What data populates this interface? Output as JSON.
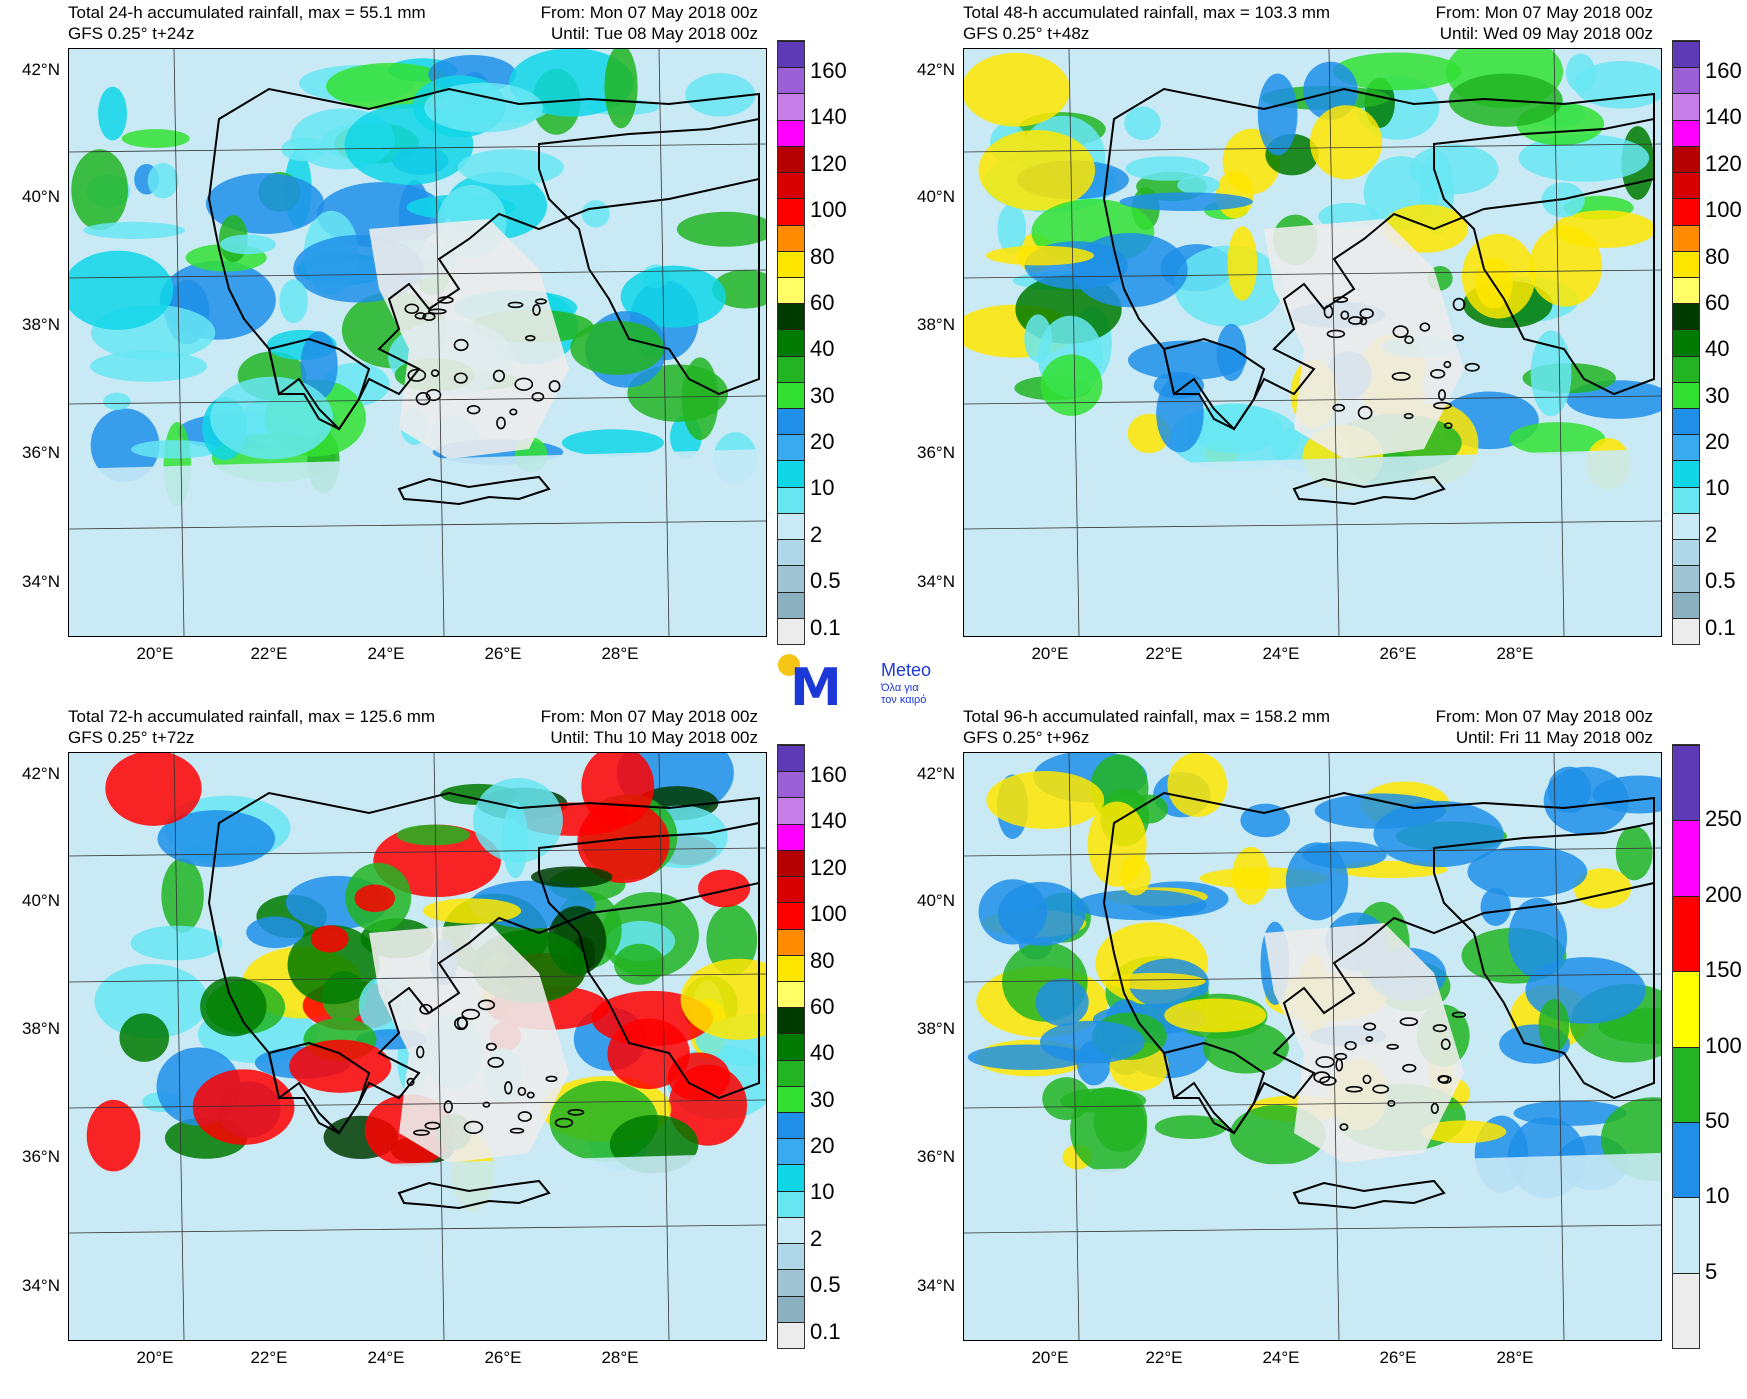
{
  "panels": [
    {
      "title": "Total 24-h accumulated rainfall, max = 55.1 mm",
      "subtitle": "GFS 0.25° t+24z",
      "from": "From: Mon 07 May 2018 00z",
      "until": "Until: Tue 08 May 2018 00z",
      "colorbar_labels": [
        "160",
        "140",
        "120",
        "100",
        "80",
        "60",
        "40",
        "30",
        "20",
        "10",
        "2",
        "0.5",
        "0.1"
      ],
      "colorbar_colors": [
        "#5e3bb6",
        "#9b5fd6",
        "#c77de8",
        "#ff00ff",
        "#b50000",
        "#d90000",
        "#ff0000",
        "#ff8c00",
        "#ffe600",
        "#ffff66",
        "#003c00",
        "#007a00",
        "#22b422",
        "#32e032",
        "#1f8fe8",
        "#3aaaf0",
        "#11d6e8",
        "#67e6f2",
        "#c9e9f5",
        "#b0d7e8",
        "#9fc4d4",
        "#8cb0bf",
        "#ececec"
      ],
      "accent": "#22b422"
    },
    {
      "title": "Total 48-h accumulated rainfall, max = 103.3 mm",
      "subtitle": "GFS 0.25° t+48z",
      "from": "From: Mon 07 May 2018 00z",
      "until": "Until: Wed 09 May 2018 00z",
      "colorbar_labels": [
        "160",
        "140",
        "120",
        "100",
        "80",
        "60",
        "40",
        "30",
        "20",
        "10",
        "2",
        "0.5",
        "0.1"
      ],
      "colorbar_colors": [
        "#5e3bb6",
        "#9b5fd6",
        "#c77de8",
        "#ff00ff",
        "#b50000",
        "#d90000",
        "#ff0000",
        "#ff8c00",
        "#ffe600",
        "#ffff66",
        "#003c00",
        "#007a00",
        "#22b422",
        "#32e032",
        "#1f8fe8",
        "#3aaaf0",
        "#11d6e8",
        "#67e6f2",
        "#c9e9f5",
        "#b0d7e8",
        "#9fc4d4",
        "#8cb0bf",
        "#ececec"
      ],
      "accent": "#22b422"
    },
    {
      "title": "Total 72-h accumulated rainfall, max = 125.6 mm",
      "subtitle": "GFS 0.25° t+72z",
      "from": "From: Mon 07 May 2018 00z",
      "until": "Until: Thu 10 May 2018 00z",
      "colorbar_labels": [
        "160",
        "140",
        "120",
        "100",
        "80",
        "60",
        "40",
        "30",
        "20",
        "10",
        "2",
        "0.5",
        "0.1"
      ],
      "colorbar_colors": [
        "#5e3bb6",
        "#9b5fd6",
        "#c77de8",
        "#ff00ff",
        "#b50000",
        "#d90000",
        "#ff0000",
        "#ff8c00",
        "#ffe600",
        "#ffff66",
        "#003c00",
        "#007a00",
        "#22b422",
        "#32e032",
        "#1f8fe8",
        "#3aaaf0",
        "#11d6e8",
        "#67e6f2",
        "#c9e9f5",
        "#b0d7e8",
        "#9fc4d4",
        "#8cb0bf",
        "#ececec"
      ],
      "accent": "#22b422"
    },
    {
      "title": "Total 96-h accumulated rainfall, max = 158.2 mm",
      "subtitle": "GFS 0.25° t+96z",
      "from": "From: Mon 07 May 2018 00z",
      "until": "Until: Fri 11 May 2018 00z",
      "colorbar_labels": [
        "250",
        "200",
        "150",
        "100",
        "50",
        "10",
        "5"
      ],
      "colorbar_colors": [
        "#5e3bb6",
        "#ff00ff",
        "#ff0000",
        "#ffff00",
        "#22b422",
        "#1f8fe8",
        "#c9e9f5",
        "#ececec"
      ],
      "accent": "#1f8fe8"
    }
  ],
  "lat_labels": [
    "42°N",
    "40°N",
    "38°N",
    "36°N",
    "34°N"
  ],
  "lon_labels": [
    "20°E",
    "22°E",
    "24°E",
    "26°E",
    "28°E"
  ],
  "logo": {
    "brand": "Meteo",
    "tagline_1": "Όλα για",
    "tagline_2": "τον καιρό",
    "mark": "M",
    "brand_color": "#1c39d8",
    "sun_color": "#f5c515"
  }
}
